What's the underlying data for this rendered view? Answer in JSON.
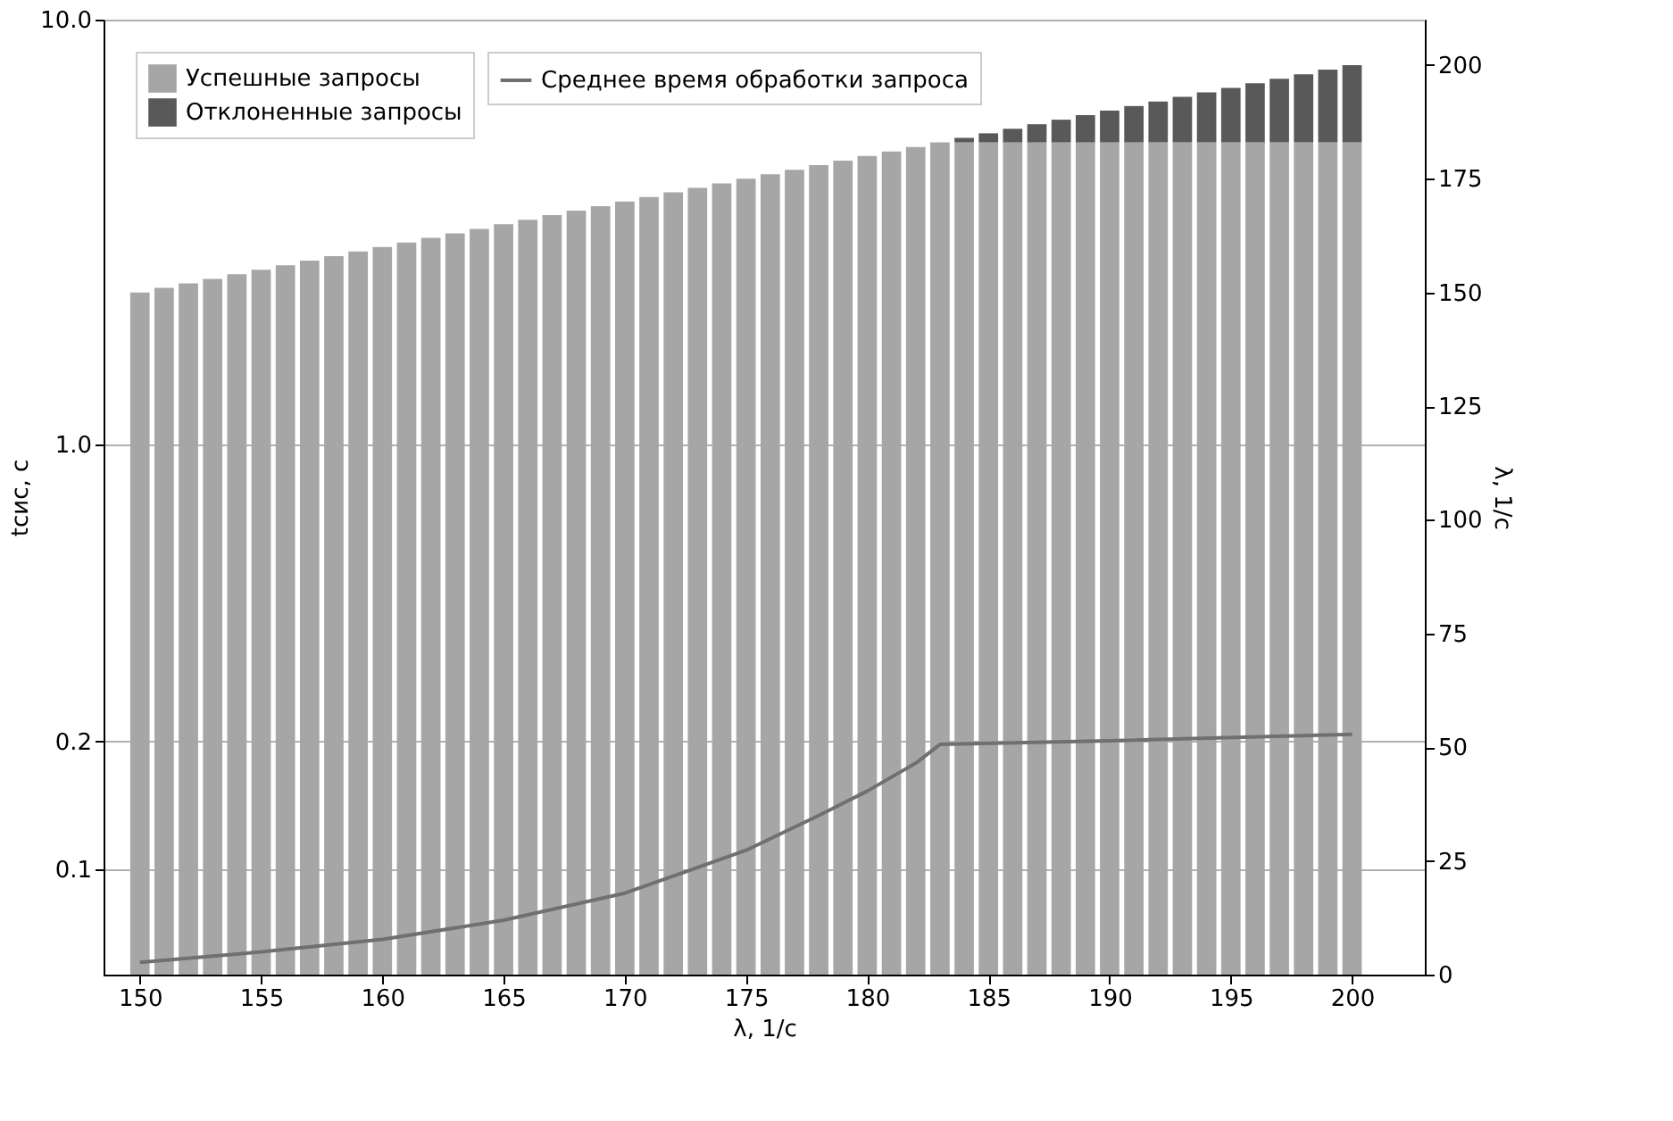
{
  "chart_data": {
    "type": "bar",
    "xlabel": "λ, 1/с",
    "ylabel": "tсис, с",
    "y2label": "λ, 1/с",
    "x": [
      150,
      151,
      152,
      153,
      154,
      155,
      156,
      157,
      158,
      159,
      160,
      161,
      162,
      163,
      164,
      165,
      166,
      167,
      168,
      169,
      170,
      171,
      172,
      173,
      174,
      175,
      176,
      177,
      178,
      179,
      180,
      181,
      182,
      183,
      184,
      185,
      186,
      187,
      188,
      189,
      190,
      191,
      192,
      193,
      194,
      195,
      196,
      197,
      198,
      199,
      200
    ],
    "stacked": true,
    "log": "y",
    "grid": "y",
    "legend": "top left",
    "xlim": [
      148.5,
      203
    ],
    "xticks": [
      150,
      155,
      160,
      165,
      170,
      175,
      180,
      185,
      190,
      195,
      200
    ],
    "ylim": [
      0.0566,
      10
    ],
    "yticks": [
      {
        "value": 0.1,
        "label": "0.1"
      },
      {
        "value": 0.2,
        "label": "0.2"
      },
      {
        "value": 1,
        "label": "1.0"
      },
      {
        "value": 10,
        "label": "10.0"
      }
    ],
    "y2lim": [
      0,
      210
    ],
    "y2ticks": [
      0,
      25,
      50,
      75,
      100,
      125,
      150,
      175,
      200
    ],
    "series": [
      {
        "name": "Успешные запросы",
        "color": "#a6a6a6",
        "axis": "y2",
        "values": [
          150,
          151,
          152,
          153,
          154,
          155,
          156,
          157,
          158,
          159,
          160,
          161,
          162,
          163,
          164,
          165,
          166,
          167,
          168,
          169,
          170,
          171,
          172,
          173,
          174,
          175,
          176,
          177,
          178,
          179,
          180,
          181,
          182,
          183,
          183,
          183,
          183,
          183,
          183,
          183,
          183,
          183,
          183,
          183,
          183,
          183,
          183,
          183,
          183,
          183,
          183
        ]
      },
      {
        "name": "Отклоненные запросы",
        "color": "#595959",
        "axis": "y2",
        "values": [
          null,
          null,
          null,
          null,
          null,
          null,
          null,
          null,
          null,
          null,
          null,
          null,
          null,
          null,
          null,
          null,
          null,
          null,
          null,
          null,
          null,
          null,
          null,
          null,
          null,
          null,
          null,
          null,
          null,
          null,
          null,
          null,
          null,
          null,
          1,
          2,
          3,
          4,
          5,
          6,
          7,
          8,
          9,
          10,
          11,
          12,
          13,
          14,
          15,
          16,
          17
        ]
      },
      {
        "name": "Среднее время обработки запроса",
        "type": "line",
        "color": "#707070",
        "axis": "y",
        "x": [
          150,
          155,
          160,
          165,
          170,
          175,
          178,
          180,
          182,
          183,
          190,
          200
        ],
        "values": [
          0.0605,
          0.064,
          0.0685,
          0.076,
          0.088,
          0.111,
          0.134,
          0.153,
          0.178,
          0.197,
          0.201,
          0.208
        ]
      }
    ]
  }
}
